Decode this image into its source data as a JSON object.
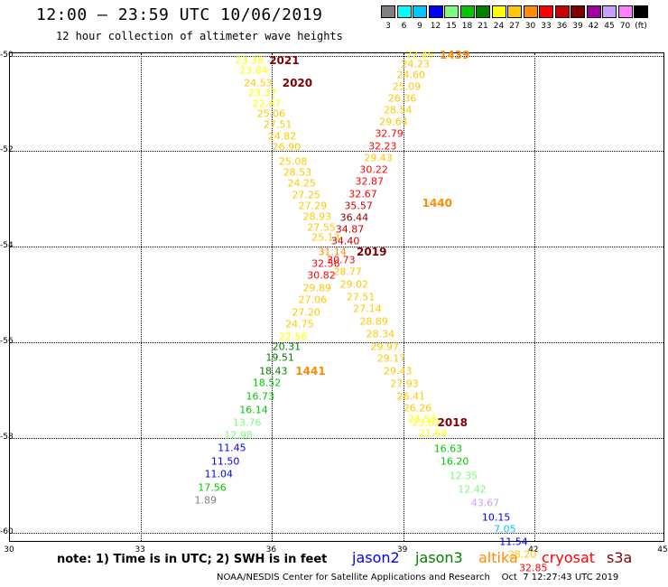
{
  "header": {
    "title": "12:00 – 23:59 UTC 10/06/2019",
    "subtitle": "12 hour collection of altimeter wave heights"
  },
  "legend": {
    "unit": "(ft)",
    "items": [
      {
        "label": "3",
        "color": "#808080"
      },
      {
        "label": "6",
        "color": "#00ffff"
      },
      {
        "label": "9",
        "color": "#00c8ff"
      },
      {
        "label": "12",
        "color": "#0000ff"
      },
      {
        "label": "15",
        "color": "#7cfc7c"
      },
      {
        "label": "18",
        "color": "#00c800"
      },
      {
        "label": "21",
        "color": "#008000"
      },
      {
        "label": "24",
        "color": "#ffff00"
      },
      {
        "label": "27",
        "color": "#ffc800"
      },
      {
        "label": "30",
        "color": "#ff8c00"
      },
      {
        "label": "33",
        "color": "#ff0000"
      },
      {
        "label": "36",
        "color": "#c80000"
      },
      {
        "label": "39",
        "color": "#800000"
      },
      {
        "label": "42",
        "color": "#a000a0"
      },
      {
        "label": "45",
        "color": "#c8a0ff"
      },
      {
        "label": "70",
        "color": "#ff80ff"
      },
      {
        "label": "",
        "color": "#000000"
      }
    ]
  },
  "axes": {
    "x_ticks": [
      "30",
      "33",
      "36",
      "39",
      "42",
      "45"
    ],
    "y_ticks": [
      "-50",
      "-52",
      "-54",
      "-56",
      "-58",
      "-60"
    ],
    "x_range": [
      30,
      45
    ],
    "y_range": [
      -60.2,
      -49.95
    ]
  },
  "pass_labels": [
    {
      "text": "2021",
      "lon": 36.3,
      "lat": -50.12,
      "color": "#800000"
    },
    {
      "text": "2020",
      "lon": 36.6,
      "lat": -50.6,
      "color": "#800000"
    },
    {
      "text": "1439",
      "lon": 40.2,
      "lat": -50.0,
      "color": "#ff8c00"
    },
    {
      "text": "1440",
      "lon": 39.8,
      "lat": -53.1,
      "color": "#ff8c00"
    },
    {
      "text": "2019",
      "lon": 38.3,
      "lat": -54.12,
      "color": "#800000"
    },
    {
      "text": "1441",
      "lon": 36.9,
      "lat": -56.62,
      "color": "#ff8c00"
    },
    {
      "text": "2018",
      "lon": 40.15,
      "lat": -57.7,
      "color": "#800000"
    }
  ],
  "observations": [
    {
      "v": "23.38",
      "lon": 35.5,
      "lat": -50.12,
      "c": "#ffff00"
    },
    {
      "v": "23.84",
      "lon": 35.6,
      "lat": -50.33,
      "c": "#ffff00"
    },
    {
      "v": "24.53",
      "lon": 35.7,
      "lat": -50.6,
      "c": "#ffc800"
    },
    {
      "v": "23.37",
      "lon": 35.8,
      "lat": -50.8,
      "c": "#ffff00"
    },
    {
      "v": "22.87",
      "lon": 35.9,
      "lat": -51.02,
      "c": "#ffff00"
    },
    {
      "v": "25.06",
      "lon": 36.0,
      "lat": -51.24,
      "c": "#ffc800"
    },
    {
      "v": "27.51",
      "lon": 36.15,
      "lat": -51.47,
      "c": "#ffc800"
    },
    {
      "v": "24.82",
      "lon": 36.25,
      "lat": -51.7,
      "c": "#ffc800"
    },
    {
      "v": "26.90",
      "lon": 36.35,
      "lat": -51.93,
      "c": "#ffc800"
    },
    {
      "v": "25.08",
      "lon": 36.5,
      "lat": -52.23,
      "c": "#ffc800"
    },
    {
      "v": "28.53",
      "lon": 36.6,
      "lat": -52.46,
      "c": "#ffc800"
    },
    {
      "v": "24.25",
      "lon": 36.7,
      "lat": -52.7,
      "c": "#ffc800"
    },
    {
      "v": "27.25",
      "lon": 36.8,
      "lat": -52.93,
      "c": "#ffc800"
    },
    {
      "v": "27.29",
      "lon": 36.95,
      "lat": -53.16,
      "c": "#ffc800"
    },
    {
      "v": "28.93",
      "lon": 37.05,
      "lat": -53.39,
      "c": "#ffc800"
    },
    {
      "v": "27.55",
      "lon": 37.15,
      "lat": -53.62,
      "c": "#ffc800"
    },
    {
      "v": "25.13",
      "lon": 37.25,
      "lat": -53.83,
      "c": "#ffc800"
    },
    {
      "v": "31.14",
      "lon": 37.4,
      "lat": -54.12,
      "c": "#ff8c00"
    },
    {
      "v": "32.56",
      "lon": 37.25,
      "lat": -54.38,
      "c": "#ff0000"
    },
    {
      "v": "30.82",
      "lon": 37.15,
      "lat": -54.62,
      "c": "#ff0000"
    },
    {
      "v": "29.89",
      "lon": 37.05,
      "lat": -54.88,
      "c": "#ffc800"
    },
    {
      "v": "27.06",
      "lon": 36.95,
      "lat": -55.14,
      "c": "#ffc800"
    },
    {
      "v": "27.20",
      "lon": 36.8,
      "lat": -55.39,
      "c": "#ffc800"
    },
    {
      "v": "24.75",
      "lon": 36.65,
      "lat": -55.65,
      "c": "#ffc800"
    },
    {
      "v": "22.56",
      "lon": 36.5,
      "lat": -55.9,
      "c": "#ffff00"
    },
    {
      "v": "20.31",
      "lon": 36.35,
      "lat": -56.12,
      "c": "#008000"
    },
    {
      "v": "19.51",
      "lon": 36.2,
      "lat": -56.35,
      "c": "#008000"
    },
    {
      "v": "18.43",
      "lon": 36.05,
      "lat": -56.62,
      "c": "#008000"
    },
    {
      "v": "18.52",
      "lon": 35.9,
      "lat": -56.88,
      "c": "#00c800"
    },
    {
      "v": "16.73",
      "lon": 35.75,
      "lat": -57.16,
      "c": "#00c800"
    },
    {
      "v": "16.14",
      "lon": 35.6,
      "lat": -57.43,
      "c": "#00c800"
    },
    {
      "v": "13.76",
      "lon": 35.45,
      "lat": -57.7,
      "c": "#7cfc7c"
    },
    {
      "v": "12.98",
      "lon": 35.25,
      "lat": -57.97,
      "c": "#7cfc7c"
    },
    {
      "v": "11.45",
      "lon": 35.1,
      "lat": -58.24,
      "c": "#0000ff"
    },
    {
      "v": "11.50",
      "lon": 34.95,
      "lat": -58.51,
      "c": "#0000ff"
    },
    {
      "v": "11.04",
      "lon": 34.8,
      "lat": -58.79,
      "c": "#0000ff"
    },
    {
      "v": "17.56",
      "lon": 34.65,
      "lat": -59.06,
      "c": "#00c800"
    },
    {
      "v": "1.89",
      "lon": 34.5,
      "lat": -59.33,
      "c": "#808080"
    },
    {
      "v": "22.46",
      "lon": 39.4,
      "lat": -50.0,
      "c": "#ffff00"
    },
    {
      "v": "24.23",
      "lon": 39.3,
      "lat": -50.2,
      "c": "#ffc800"
    },
    {
      "v": "24.60",
      "lon": 39.2,
      "lat": -50.43,
      "c": "#ffc800"
    },
    {
      "v": "25.09",
      "lon": 39.1,
      "lat": -50.66,
      "c": "#ffc800"
    },
    {
      "v": "26.36",
      "lon": 39.0,
      "lat": -50.91,
      "c": "#ffc800"
    },
    {
      "v": "28.54",
      "lon": 38.9,
      "lat": -51.16,
      "c": "#ffc800"
    },
    {
      "v": "29.64",
      "lon": 38.8,
      "lat": -51.41,
      "c": "#ffc800"
    },
    {
      "v": "32.79",
      "lon": 38.7,
      "lat": -51.66,
      "c": "#ff0000"
    },
    {
      "v": "32.23",
      "lon": 38.55,
      "lat": -51.91,
      "c": "#ff0000"
    },
    {
      "v": "29.43",
      "lon": 38.45,
      "lat": -52.16,
      "c": "#ffc800"
    },
    {
      "v": "30.22",
      "lon": 38.35,
      "lat": -52.41,
      "c": "#ff0000"
    },
    {
      "v": "32.87",
      "lon": 38.25,
      "lat": -52.66,
      "c": "#ff0000"
    },
    {
      "v": "32.67",
      "lon": 38.1,
      "lat": -52.91,
      "c": "#ff0000"
    },
    {
      "v": "35.57",
      "lon": 38.0,
      "lat": -53.16,
      "c": "#c80000"
    },
    {
      "v": "36.44",
      "lon": 37.9,
      "lat": -53.41,
      "c": "#800000"
    },
    {
      "v": "34.87",
      "lon": 37.8,
      "lat": -53.66,
      "c": "#c80000"
    },
    {
      "v": "34.40",
      "lon": 37.7,
      "lat": -53.91,
      "c": "#c80000"
    },
    {
      "v": "30.73",
      "lon": 37.6,
      "lat": -54.3,
      "c": "#ff0000"
    },
    {
      "v": "28.77",
      "lon": 37.75,
      "lat": -54.55,
      "c": "#ffc800"
    },
    {
      "v": "29.02",
      "lon": 37.9,
      "lat": -54.81,
      "c": "#ffc800"
    },
    {
      "v": "27.51",
      "lon": 38.05,
      "lat": -55.07,
      "c": "#ffc800"
    },
    {
      "v": "27.14",
      "lon": 38.2,
      "lat": -55.33,
      "c": "#ffc800"
    },
    {
      "v": "28.89",
      "lon": 38.35,
      "lat": -55.59,
      "c": "#ffc800"
    },
    {
      "v": "28.34",
      "lon": 38.5,
      "lat": -55.85,
      "c": "#ffc800"
    },
    {
      "v": "29.97",
      "lon": 38.6,
      "lat": -56.11,
      "c": "#ffc800"
    },
    {
      "v": "29.17",
      "lon": 38.75,
      "lat": -56.37,
      "c": "#ffc800"
    },
    {
      "v": "29.43",
      "lon": 38.9,
      "lat": -56.63,
      "c": "#ffc800"
    },
    {
      "v": "27.93",
      "lon": 39.05,
      "lat": -56.89,
      "c": "#ffc800"
    },
    {
      "v": "26.41",
      "lon": 39.2,
      "lat": -57.15,
      "c": "#ffc800"
    },
    {
      "v": "26.26",
      "lon": 39.35,
      "lat": -57.41,
      "c": "#ffc800"
    },
    {
      "v": "23.53",
      "lon": 39.45,
      "lat": -57.62,
      "c": "#ffff00"
    },
    {
      "v": "23.62",
      "lon": 39.55,
      "lat": -57.7,
      "c": "#ffff00"
    },
    {
      "v": "21.69",
      "lon": 39.7,
      "lat": -57.94,
      "c": "#ffff00"
    },
    {
      "v": "16.63",
      "lon": 40.05,
      "lat": -58.25,
      "c": "#00c800"
    },
    {
      "v": "16.20",
      "lon": 40.2,
      "lat": -58.52,
      "c": "#00c800"
    },
    {
      "v": "12.35",
      "lon": 40.4,
      "lat": -58.82,
      "c": "#7cfc7c"
    },
    {
      "v": "12.42",
      "lon": 40.6,
      "lat": -59.1,
      "c": "#7cfc7c"
    },
    {
      "v": "43.67",
      "lon": 40.9,
      "lat": -59.38,
      "c": "#c8a0ff"
    },
    {
      "v": "10.15",
      "lon": 41.15,
      "lat": -59.68,
      "c": "#0000ff"
    },
    {
      "v": "7.05",
      "lon": 41.35,
      "lat": -59.94,
      "c": "#00c8ff"
    },
    {
      "v": "11.54",
      "lon": 41.55,
      "lat": -60.2,
      "c": "#0000ff"
    },
    {
      "v": "28.20",
      "lon": 41.75,
      "lat": -60.47,
      "c": "#ffc800"
    },
    {
      "v": "32.85",
      "lon": 42.0,
      "lat": -60.75,
      "c": "#ff0000"
    }
  ],
  "footer": {
    "note": "note: 1) Time is in UTC; 2) SWH is in feet",
    "satellites": [
      {
        "label": "jason2",
        "color": "#0000ff"
      },
      {
        "label": "jason3",
        "color": "#008000"
      },
      {
        "label": "altika",
        "color": "#ff8c00"
      },
      {
        "label": "cryosat",
        "color": "#ff0000"
      },
      {
        "label": "s3a",
        "color": "#800000"
      }
    ],
    "credit": "NOAA/NESDIS Center for Satellite Applications and Research    Oct  7 12:27:43 UTC 2019"
  }
}
